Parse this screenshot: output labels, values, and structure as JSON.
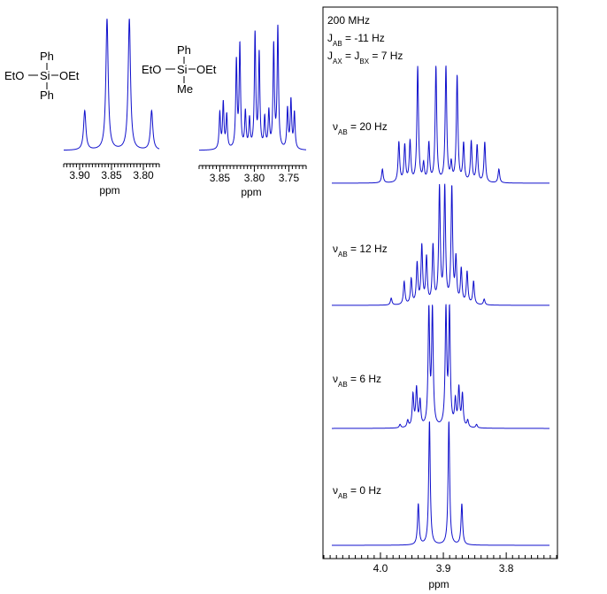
{
  "colors": {
    "spectrum": "#1010cc",
    "axis": "#000000",
    "frame": "#000000"
  },
  "molecules": [
    {
      "top": "Ph",
      "left": "EtO",
      "center": "Si",
      "right": "OEt",
      "bottom": "Ph"
    },
    {
      "top": "Ph",
      "left": "EtO",
      "center": "Si",
      "right": "OEt",
      "bottom": "Me"
    }
  ],
  "chart_data": [
    {
      "type": "line",
      "description": "Experimental 1H NMR, OCH2 region of Ph2Si(OEt)2",
      "xlabel": "ppm",
      "xlim": [
        3.925,
        3.775
      ],
      "x_reversed": true,
      "ticks": [
        3.9,
        3.85,
        3.8
      ],
      "tick_labels": [
        "3.90",
        "3.85",
        "3.80"
      ],
      "peaks": [
        {
          "x": 3.892,
          "y": 0.3
        },
        {
          "x": 3.857,
          "y": 1.0
        },
        {
          "x": 3.822,
          "y": 1.0
        },
        {
          "x": 3.787,
          "y": 0.3
        }
      ]
    },
    {
      "type": "line",
      "description": "Experimental 1H NMR, OCH2 region of PhMeSi(OEt)2",
      "xlabel": "ppm",
      "xlim": [
        3.88,
        3.725
      ],
      "x_reversed": true,
      "ticks": [
        3.85,
        3.8,
        3.75
      ],
      "tick_labels": [
        "3.85",
        "3.80",
        "3.75"
      ],
      "peaks": [
        {
          "x": 3.85,
          "y": 0.3
        },
        {
          "x": 3.845,
          "y": 0.38
        },
        {
          "x": 3.84,
          "y": 0.28
        },
        {
          "x": 3.826,
          "y": 0.72
        },
        {
          "x": 3.821,
          "y": 0.85
        },
        {
          "x": 3.813,
          "y": 0.3
        },
        {
          "x": 3.807,
          "y": 0.24
        },
        {
          "x": 3.799,
          "y": 0.95
        },
        {
          "x": 3.793,
          "y": 0.78
        },
        {
          "x": 3.785,
          "y": 0.25
        },
        {
          "x": 3.779,
          "y": 0.3
        },
        {
          "x": 3.772,
          "y": 0.85
        },
        {
          "x": 3.766,
          "y": 1.0
        },
        {
          "x": 3.752,
          "y": 0.33
        },
        {
          "x": 3.747,
          "y": 0.4
        },
        {
          "x": 3.742,
          "y": 0.3
        }
      ]
    },
    {
      "type": "line",
      "description": "Simulated ABX3 spectra stacked",
      "header": [
        "200 MHz",
        "J_AB = -11 Hz",
        "J_AX = J_BX = 7 Hz"
      ],
      "xlabel": "ppm",
      "xlim": [
        4.09,
        3.72
      ],
      "x_reversed": true,
      "ticks": [
        4.0,
        3.9,
        3.8
      ],
      "tick_labels": [
        "4.0",
        "3.9",
        "3.8"
      ],
      "series": [
        {
          "label": "ν",
          "sub": "AB",
          "value": " = 20 Hz",
          "peaks": [
            {
              "x": 4.004,
              "y": 0.12
            },
            {
              "x": 3.976,
              "y": 0.35
            },
            {
              "x": 3.966,
              "y": 0.32
            },
            {
              "x": 3.957,
              "y": 0.35
            },
            {
              "x": 3.944,
              "y": 1.0
            },
            {
              "x": 3.934,
              "y": 0.15
            },
            {
              "x": 3.925,
              "y": 0.33
            },
            {
              "x": 3.913,
              "y": 1.0
            },
            {
              "x": 3.896,
              "y": 1.0
            },
            {
              "x": 3.887,
              "y": 0.15
            },
            {
              "x": 3.877,
              "y": 0.92
            },
            {
              "x": 3.866,
              "y": 0.33
            },
            {
              "x": 3.853,
              "y": 0.35
            },
            {
              "x": 3.843,
              "y": 0.32
            },
            {
              "x": 3.83,
              "y": 0.35
            },
            {
              "x": 3.806,
              "y": 0.12
            }
          ]
        },
        {
          "label": "ν",
          "sub": "AB",
          "value": " = 12 Hz",
          "peaks": [
            {
              "x": 3.989,
              "y": 0.06
            },
            {
              "x": 3.967,
              "y": 0.2
            },
            {
              "x": 3.955,
              "y": 0.22
            },
            {
              "x": 3.945,
              "y": 0.35
            },
            {
              "x": 3.937,
              "y": 0.5
            },
            {
              "x": 3.929,
              "y": 0.4
            },
            {
              "x": 3.918,
              "y": 0.5
            },
            {
              "x": 3.907,
              "y": 1.0
            },
            {
              "x": 3.898,
              "y": 1.0
            },
            {
              "x": 3.886,
              "y": 1.0
            },
            {
              "x": 3.879,
              "y": 0.38
            },
            {
              "x": 3.87,
              "y": 0.3
            },
            {
              "x": 3.86,
              "y": 0.28
            },
            {
              "x": 3.849,
              "y": 0.2
            },
            {
              "x": 3.831,
              "y": 0.05
            }
          ]
        },
        {
          "label": "ν",
          "sub": "AB",
          "value": " = 6 Hz",
          "peaks": [
            {
              "x": 3.974,
              "y": 0.03
            },
            {
              "x": 3.961,
              "y": 0.06
            },
            {
              "x": 3.952,
              "y": 0.28
            },
            {
              "x": 3.946,
              "y": 0.33
            },
            {
              "x": 3.94,
              "y": 0.22
            },
            {
              "x": 3.925,
              "y": 1.0
            },
            {
              "x": 3.919,
              "y": 1.0
            },
            {
              "x": 3.896,
              "y": 1.0
            },
            {
              "x": 3.89,
              "y": 1.0
            },
            {
              "x": 3.88,
              "y": 0.22
            },
            {
              "x": 3.874,
              "y": 0.33
            },
            {
              "x": 3.868,
              "y": 0.28
            },
            {
              "x": 3.859,
              "y": 0.06
            },
            {
              "x": 3.844,
              "y": 0.03
            }
          ]
        },
        {
          "label": "ν",
          "sub": "AB",
          "value": " = 0 Hz",
          "peaks": [
            {
              "x": 3.943,
              "y": 0.33
            },
            {
              "x": 3.924,
              "y": 1.0
            },
            {
              "x": 3.891,
              "y": 1.0
            },
            {
              "x": 3.869,
              "y": 0.33
            }
          ]
        }
      ]
    }
  ]
}
